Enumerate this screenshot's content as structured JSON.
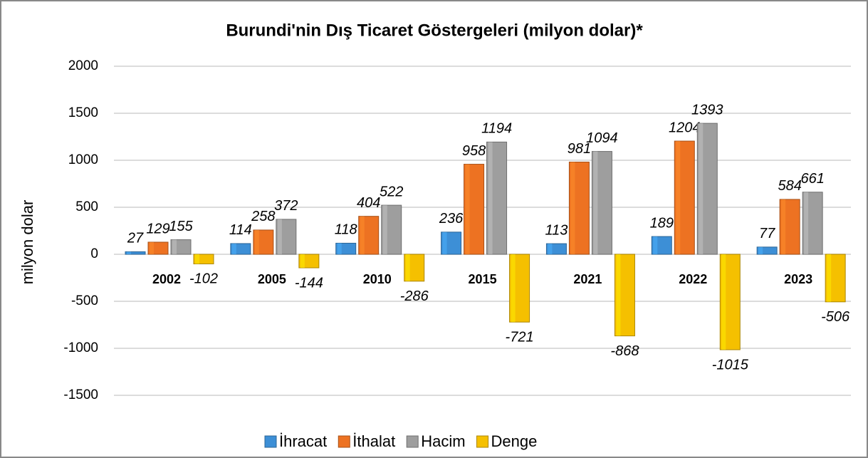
{
  "chart_data": {
    "type": "bar",
    "title": "Burundi'nin Dış Ticaret Göstergeleri  (milyon dolar)*",
    "y_label": "milyon dolar",
    "categories": [
      "2002",
      "2005",
      "2010",
      "2015",
      "2021",
      "2022",
      "2023"
    ],
    "series": [
      {
        "name": "İhracat",
        "color": "#3d8fd6",
        "values": [
          27,
          114,
          118,
          236,
          113,
          189,
          77
        ]
      },
      {
        "name": "İthalat",
        "color": "#ed7222",
        "values": [
          129,
          258,
          404,
          958,
          981,
          1204,
          584
        ]
      },
      {
        "name": "Hacim",
        "color": "#9e9e9e",
        "values": [
          155,
          372,
          522,
          1194,
          1094,
          1393,
          661
        ]
      },
      {
        "name": "Denge",
        "color": "#f5c000",
        "values": [
          -102,
          -144,
          -286,
          -721,
          -868,
          -1015,
          -506
        ]
      }
    ],
    "ylim": [
      -1500,
      2000
    ],
    "yticks": [
      -1500,
      -1000,
      -500,
      0,
      500,
      1000,
      1500,
      2000
    ],
    "grid": true,
    "legend": "bottom"
  }
}
